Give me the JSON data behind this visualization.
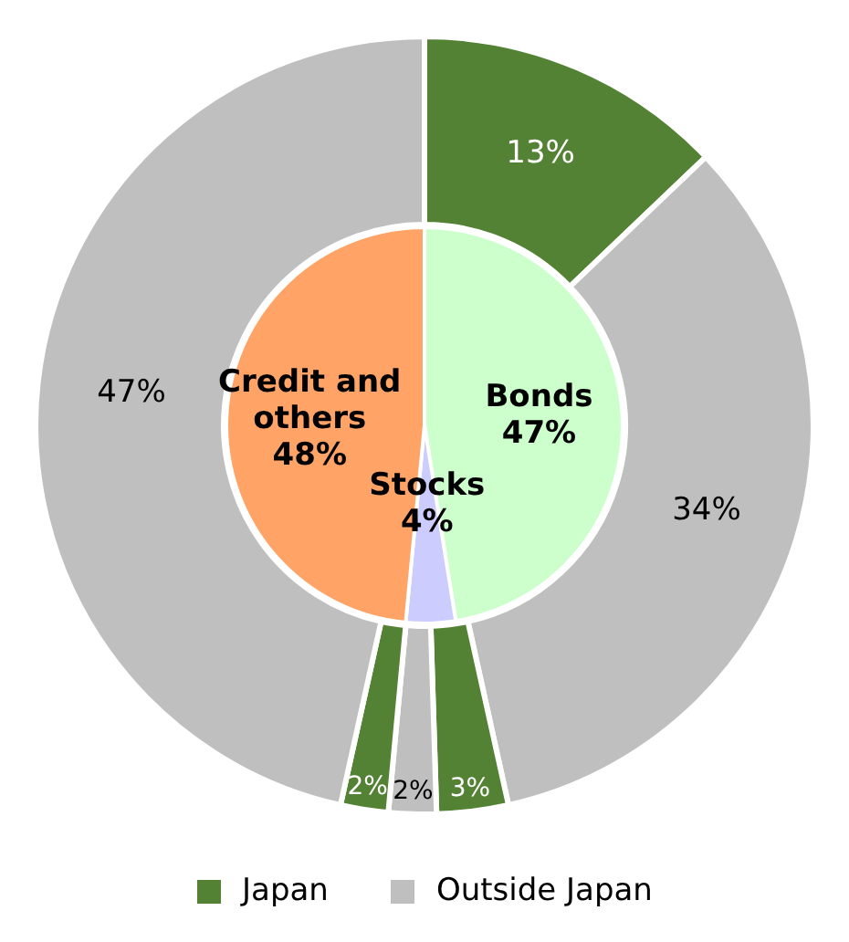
{
  "chart_data": [
    {
      "type": "pie",
      "categories": [
        "Bonds",
        "Stocks",
        "Credit and others"
      ],
      "values": [
        47,
        4,
        48
      ],
      "colors": [
        "#ccffcc",
        "#ccccff",
        "#ffa366"
      ],
      "value_labels": [
        "47%",
        "4%",
        "48%"
      ]
    },
    {
      "type": "donut",
      "categories": [
        null,
        null,
        null,
        null,
        null,
        null
      ],
      "values": [
        13,
        34,
        3,
        2,
        2,
        47
      ],
      "colors": [
        "#548235",
        "#bfbfbf",
        "#548235",
        "#bfbfbf",
        "#548235",
        "#bfbfbf"
      ],
      "value_labels": [
        "13%",
        "34%",
        "3%",
        "2%",
        "2%",
        "47%"
      ],
      "annotations": [
        "Japan",
        "Outside Japan"
      ]
    }
  ]
}
